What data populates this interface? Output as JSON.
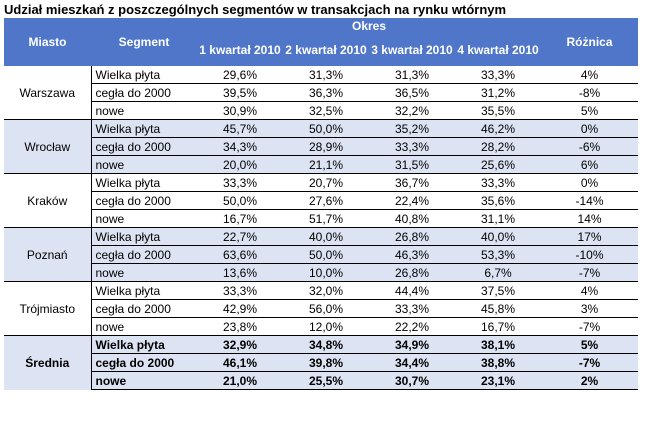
{
  "title": "Udział mieszkań z poszczególnych segmentów w transakcjach na rynku wtórnym",
  "header": {
    "city": "Miasto",
    "segment": "Segment",
    "period": "Okres",
    "quarters": [
      "1 kwartał 2010",
      "2 kwartał 2010",
      "3 kwartał 2010",
      "4 kwartał 2010"
    ],
    "difference": "Różnica"
  },
  "groups": [
    {
      "city": "Warszawa",
      "rows": [
        {
          "segment": "Wielka płyta",
          "q1": "29,6%",
          "q2": "31,3%",
          "q3": "31,3%",
          "q4": "33,3%",
          "diff": "4%"
        },
        {
          "segment": "cegła do 2000",
          "q1": "39,5%",
          "q2": "36,3%",
          "q3": "36,5%",
          "q4": "31,2%",
          "diff": "-8%"
        },
        {
          "segment": "nowe",
          "q1": "30,9%",
          "q2": "32,5%",
          "q3": "32,2%",
          "q4": "35,5%",
          "diff": "5%"
        }
      ]
    },
    {
      "city": "Wrocław",
      "rows": [
        {
          "segment": "Wielka płyta",
          "q1": "45,7%",
          "q2": "50,0%",
          "q3": "35,2%",
          "q4": "46,2%",
          "diff": "0%"
        },
        {
          "segment": "cegła do 2000",
          "q1": "34,3%",
          "q2": "28,9%",
          "q3": "33,3%",
          "q4": "28,2%",
          "diff": "-6%"
        },
        {
          "segment": "nowe",
          "q1": "20,0%",
          "q2": "21,1%",
          "q3": "31,5%",
          "q4": "25,6%",
          "diff": "6%"
        }
      ]
    },
    {
      "city": "Kraków",
      "rows": [
        {
          "segment": "Wielka płyta",
          "q1": "33,3%",
          "q2": "20,7%",
          "q3": "36,7%",
          "q4": "33,3%",
          "diff": "0%"
        },
        {
          "segment": "cegła do 2000",
          "q1": "50,0%",
          "q2": "27,6%",
          "q3": "22,4%",
          "q4": "35,6%",
          "diff": "-14%"
        },
        {
          "segment": "nowe",
          "q1": "16,7%",
          "q2": "51,7%",
          "q3": "40,8%",
          "q4": "31,1%",
          "diff": "14%"
        }
      ]
    },
    {
      "city": "Poznań",
      "rows": [
        {
          "segment": "Wielka płyta",
          "q1": "22,7%",
          "q2": "40,0%",
          "q3": "26,8%",
          "q4": "40,0%",
          "diff": "17%"
        },
        {
          "segment": "cegła do 2000",
          "q1": "63,6%",
          "q2": "50,0%",
          "q3": "46,3%",
          "q4": "53,3%",
          "diff": "-10%"
        },
        {
          "segment": "nowe",
          "q1": "13,6%",
          "q2": "10,0%",
          "q3": "26,8%",
          "q4": "6,7%",
          "diff": "-7%"
        }
      ]
    },
    {
      "city": "Trójmiasto",
      "rows": [
        {
          "segment": "Wielka płyta",
          "q1": "33,3%",
          "q2": "32,0%",
          "q3": "44,4%",
          "q4": "37,5%",
          "diff": "4%"
        },
        {
          "segment": "cegła do 2000",
          "q1": "42,9%",
          "q2": "56,0%",
          "q3": "33,3%",
          "q4": "45,8%",
          "diff": "3%"
        },
        {
          "segment": "nowe",
          "q1": "23,8%",
          "q2": "12,0%",
          "q3": "22,2%",
          "q4": "16,7%",
          "diff": "-7%"
        }
      ]
    },
    {
      "city": "Średnia",
      "rows": [
        {
          "segment": "Wielka płyta",
          "q1": "32,9%",
          "q2": "34,8%",
          "q3": "34,9%",
          "q4": "38,1%",
          "diff": "5%"
        },
        {
          "segment": "cegła do 2000",
          "q1": "46,1%",
          "q2": "39,8%",
          "q3": "34,4%",
          "q4": "38,8%",
          "diff": "-7%"
        },
        {
          "segment": "nowe",
          "q1": "21,0%",
          "q2": "25,5%",
          "q3": "30,7%",
          "q4": "23,1%",
          "diff": "2%"
        }
      ]
    }
  ],
  "colors": {
    "header_bg": "#4f76c8",
    "shade_bg": "#dce3f2"
  }
}
